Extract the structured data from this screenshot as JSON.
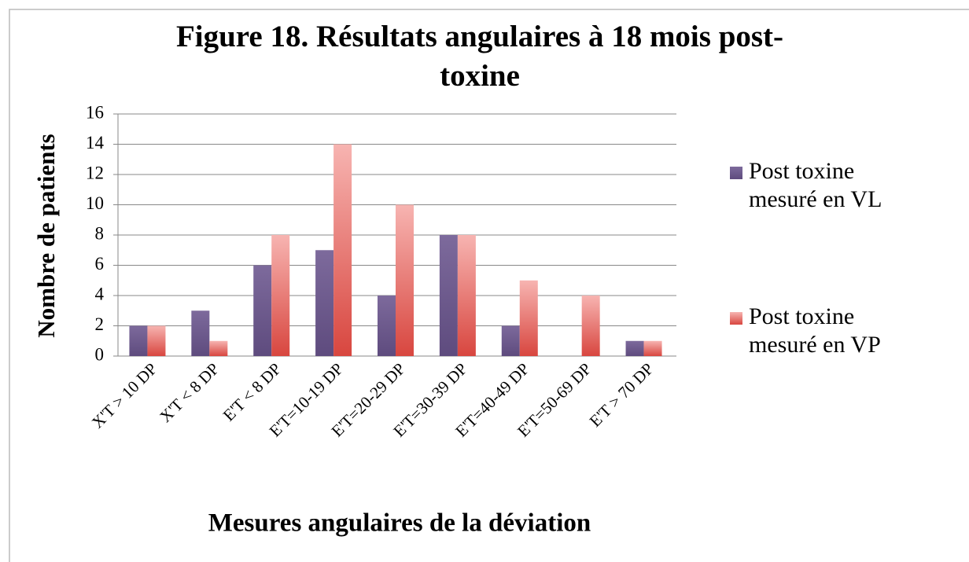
{
  "chart_data": {
    "type": "bar",
    "title": "Figure 18. Résultats angulaires à 18 mois post-toxine",
    "x_label": "Mesures angulaires de la déviation",
    "y_label": "Nombre de patients",
    "categories": [
      "X'T > 10 DP",
      "X'T < 8 DP",
      "E'T < 8 DP",
      "E'T=10-19 DP",
      "E'T=20-29 DP",
      "E'T=30-39 DP",
      "E'T=40-49 DP",
      "E'T=50-69 DP",
      "E'T > 70 DP"
    ],
    "series": [
      {
        "name": "Post toxine mesuré en VL",
        "color": "#6e5a8e",
        "values": [
          2,
          3,
          6,
          7,
          4,
          8,
          2,
          0,
          1
        ]
      },
      {
        "name": "Post toxine mesuré en VP",
        "color": "#e0605a",
        "values": [
          2,
          1,
          8,
          14,
          10,
          8,
          5,
          4,
          1
        ]
      }
    ],
    "ylim": [
      0,
      16
    ],
    "yticks": [
      0,
      2,
      4,
      6,
      8,
      10,
      12,
      14,
      16
    ],
    "grid": true,
    "legend": "right"
  }
}
